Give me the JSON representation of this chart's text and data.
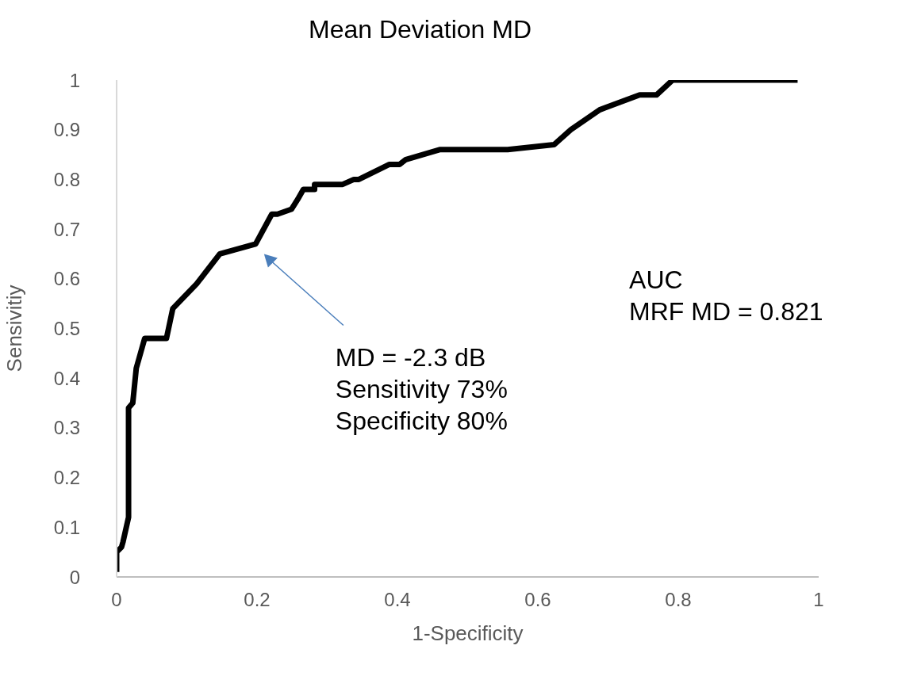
{
  "chart_data": {
    "type": "line",
    "title": "Mean Deviation MD",
    "xlabel": "1-Specificity",
    "ylabel": "Sensivitiy",
    "x": [
      0,
      0,
      0.007,
      0.009,
      0.017,
      0.017,
      0.023,
      0.028,
      0.032,
      0.04,
      0.071,
      0.077,
      0.08,
      0.114,
      0.147,
      0.198,
      0.221,
      0.229,
      0.249,
      0.258,
      0.266,
      0.282,
      0.282,
      0.322,
      0.338,
      0.345,
      0.388,
      0.403,
      0.412,
      0.46,
      0.557,
      0.623,
      0.647,
      0.688,
      0.745,
      0.769,
      0.792,
      0.97
    ],
    "series": [
      {
        "color": "#000000",
        "values": [
          0.01,
          0.05,
          0.06,
          0.07,
          0.12,
          0.34,
          0.35,
          0.42,
          0.44,
          0.48,
          0.48,
          0.52,
          0.54,
          0.59,
          0.65,
          0.67,
          0.73,
          0.73,
          0.74,
          0.76,
          0.78,
          0.78,
          0.79,
          0.79,
          0.8,
          0.8,
          0.83,
          0.83,
          0.84,
          0.86,
          0.86,
          0.87,
          0.9,
          0.94,
          0.97,
          0.97,
          1,
          1
        ]
      }
    ],
    "xlim": [
      0,
      1
    ],
    "xticks": [
      0,
      0.2,
      0.4,
      0.6,
      0.8,
      1
    ],
    "ylim": [
      0,
      1
    ],
    "yticks": [
      0,
      0.1,
      0.2,
      0.3,
      0.4,
      0.5,
      0.6,
      0.7,
      0.8,
      0.9,
      1
    ],
    "grid": false,
    "legend": false,
    "marker": "none",
    "line_style": "solid",
    "annotations": [
      "MD = -2.3 dB\nSensitivity 73%\nSpecificity 80%",
      "AUC\nMRF MD = 0.821"
    ]
  }
}
